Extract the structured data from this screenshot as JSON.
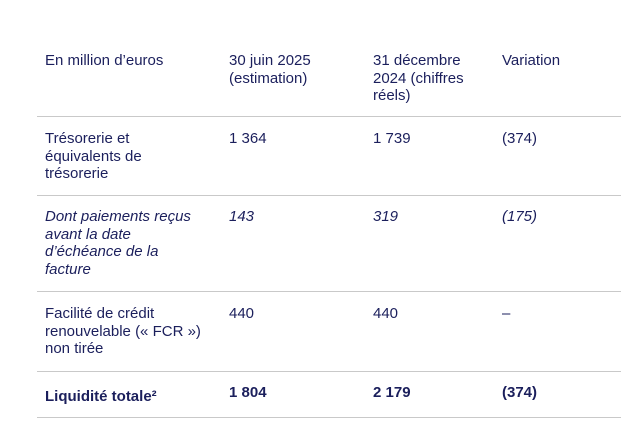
{
  "table": {
    "header": [
      "En million d’euros",
      "30 juin 2025 (estimation)",
      "31 décembre 2024 (chiffres réels)",
      "Variation"
    ],
    "rows": [
      [
        "Trésorerie et équivalents de trésorerie",
        "1 364",
        "1 739",
        "(374)"
      ],
      [
        "Dont paiements reçus avant la date d’échéance de la facture",
        "143",
        "319",
        "(175)"
      ],
      [
        "Facilité de crédit renouvelable (« FCR ») non tirée",
        "440",
        "440",
        "–"
      ],
      [
        "Liquidité totale²",
        "1 804",
        "2 179",
        "(374)"
      ]
    ]
  }
}
